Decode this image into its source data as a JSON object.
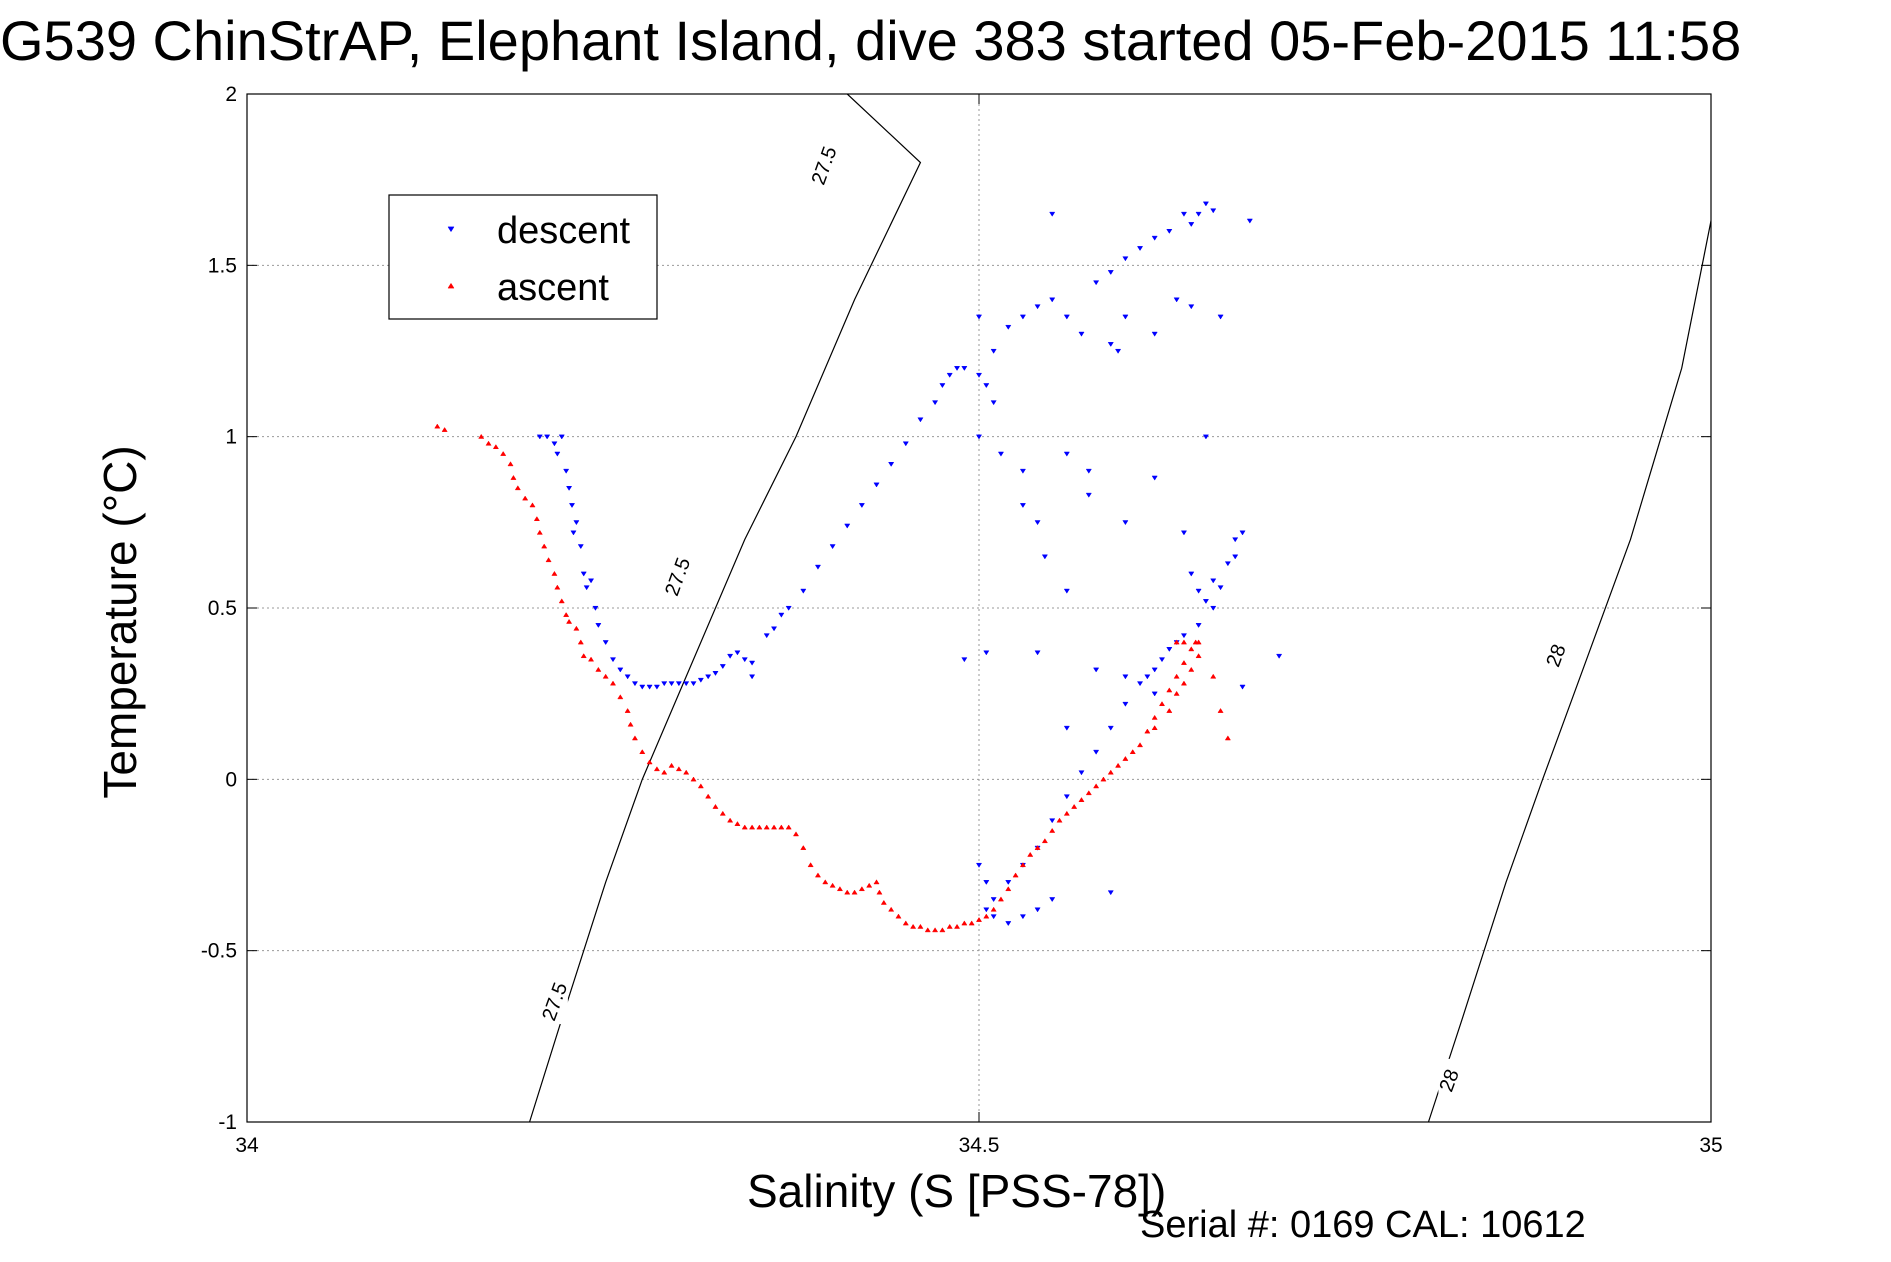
{
  "title": "G539 ChinStrAP, Elephant Island, dive 383 started 05-Feb-2015 11:58",
  "footer": "Serial #: 0169 CAL: 10612",
  "colors": {
    "descent": "#0000ff",
    "ascent": "#ff0000",
    "contour": "#000000",
    "grid": "#999999"
  },
  "chart_data": {
    "type": "scatter",
    "xlabel": "Salinity (S [PSS-78])",
    "ylabel": "Temperature (°C)",
    "xlim": [
      34,
      35
    ],
    "ylim": [
      -1,
      2
    ],
    "xticks": [
      "34",
      "34.5",
      "35"
    ],
    "yticks": [
      "-1",
      "-0.5",
      "0",
      "0.5",
      "1",
      "1.5",
      "2"
    ],
    "grid": true,
    "legend_position": "top-left",
    "contours": [
      {
        "label": "27.5",
        "points": [
          [
            34.193,
            -1
          ],
          [
            34.215,
            -0.7
          ],
          [
            34.245,
            -0.3
          ],
          [
            34.27,
            0
          ],
          [
            34.3,
            0.3
          ],
          [
            34.34,
            0.7
          ],
          [
            34.375,
            1
          ],
          [
            34.415,
            1.4
          ],
          [
            34.46,
            1.8
          ],
          [
            34.41,
            2
          ]
        ],
        "label_positions": [
          [
            34.211,
            -0.65
          ],
          [
            34.295,
            0.59
          ],
          [
            34.395,
            1.79
          ]
        ]
      },
      {
        "label": "28",
        "points": [
          [
            34.807,
            -1
          ],
          [
            34.83,
            -0.7
          ],
          [
            34.86,
            -0.3
          ],
          [
            34.885,
            0
          ],
          [
            34.915,
            0.35
          ],
          [
            34.945,
            0.7
          ],
          [
            34.98,
            1.2
          ],
          [
            35,
            1.63
          ]
        ],
        "label_positions": [
          [
            34.822,
            -0.88
          ],
          [
            34.895,
            0.36
          ]
        ]
      }
    ],
    "series": [
      {
        "name": "descent",
        "marker": "triangle-down",
        "points": [
          [
            34.2,
            1
          ],
          [
            34.205,
            1
          ],
          [
            34.21,
            0.98
          ],
          [
            34.212,
            0.95
          ],
          [
            34.215,
            1
          ],
          [
            34.218,
            0.9
          ],
          [
            34.22,
            0.85
          ],
          [
            34.222,
            0.8
          ],
          [
            34.225,
            0.75
          ],
          [
            34.223,
            0.72
          ],
          [
            34.228,
            0.68
          ],
          [
            34.23,
            0.6
          ],
          [
            34.232,
            0.56
          ],
          [
            34.235,
            0.58
          ],
          [
            34.238,
            0.5
          ],
          [
            34.24,
            0.45
          ],
          [
            34.245,
            0.4
          ],
          [
            34.25,
            0.35
          ],
          [
            34.255,
            0.32
          ],
          [
            34.26,
            0.3
          ],
          [
            34.265,
            0.28
          ],
          [
            34.27,
            0.27
          ],
          [
            34.275,
            0.27
          ],
          [
            34.28,
            0.27
          ],
          [
            34.285,
            0.28
          ],
          [
            34.29,
            0.28
          ],
          [
            34.295,
            0.28
          ],
          [
            34.3,
            0.28
          ],
          [
            34.305,
            0.28
          ],
          [
            34.31,
            0.29
          ],
          [
            34.315,
            0.3
          ],
          [
            34.32,
            0.31
          ],
          [
            34.325,
            0.33
          ],
          [
            34.33,
            0.36
          ],
          [
            34.335,
            0.37
          ],
          [
            34.34,
            0.35
          ],
          [
            34.345,
            0.34
          ],
          [
            34.345,
            0.3
          ],
          [
            34.355,
            0.42
          ],
          [
            34.36,
            0.44
          ],
          [
            34.365,
            0.48
          ],
          [
            34.37,
            0.5
          ],
          [
            34.38,
            0.55
          ],
          [
            34.39,
            0.62
          ],
          [
            34.4,
            0.68
          ],
          [
            34.41,
            0.74
          ],
          [
            34.42,
            0.8
          ],
          [
            34.43,
            0.86
          ],
          [
            34.44,
            0.92
          ],
          [
            34.45,
            0.98
          ],
          [
            34.46,
            1.05
          ],
          [
            34.47,
            1.1
          ],
          [
            34.475,
            1.15
          ],
          [
            34.48,
            1.18
          ],
          [
            34.485,
            1.2
          ],
          [
            34.49,
            1.2
          ],
          [
            34.5,
            1.18
          ],
          [
            34.505,
            1.15
          ],
          [
            34.51,
            1.25
          ],
          [
            34.52,
            1.32
          ],
          [
            34.53,
            1.35
          ],
          [
            34.54,
            1.38
          ],
          [
            34.55,
            1.4
          ],
          [
            34.56,
            1.35
          ],
          [
            34.57,
            1.3
          ],
          [
            34.58,
            1.45
          ],
          [
            34.59,
            1.48
          ],
          [
            34.6,
            1.52
          ],
          [
            34.61,
            1.55
          ],
          [
            34.62,
            1.58
          ],
          [
            34.63,
            1.6
          ],
          [
            34.64,
            1.65
          ],
          [
            34.645,
            1.62
          ],
          [
            34.65,
            1.65
          ],
          [
            34.655,
            1.68
          ],
          [
            34.66,
            1.66
          ],
          [
            34.635,
            1.4
          ],
          [
            34.645,
            1.38
          ],
          [
            34.62,
            1.3
          ],
          [
            34.6,
            1.35
          ],
          [
            34.59,
            1.27
          ],
          [
            34.595,
            1.25
          ],
          [
            34.665,
            1.35
          ],
          [
            34.685,
            1.63
          ],
          [
            34.55,
            1.65
          ],
          [
            34.5,
            1.35
          ],
          [
            34.51,
            1.1
          ],
          [
            34.5,
            1
          ],
          [
            34.515,
            0.95
          ],
          [
            34.53,
            0.9
          ],
          [
            34.53,
            0.8
          ],
          [
            34.54,
            0.75
          ],
          [
            34.545,
            0.65
          ],
          [
            34.56,
            0.55
          ],
          [
            34.56,
            0.95
          ],
          [
            34.575,
            0.83
          ],
          [
            34.62,
            0.88
          ],
          [
            34.6,
            0.75
          ],
          [
            34.64,
            0.72
          ],
          [
            34.645,
            0.6
          ],
          [
            34.65,
            0.55
          ],
          [
            34.655,
            0.52
          ],
          [
            34.66,
            0.5
          ],
          [
            34.665,
            0.56
          ],
          [
            34.67,
            0.63
          ],
          [
            34.675,
            0.7
          ],
          [
            34.68,
            0.72
          ],
          [
            34.675,
            0.65
          ],
          [
            34.66,
            0.58
          ],
          [
            34.65,
            0.45
          ],
          [
            34.64,
            0.42
          ],
          [
            34.635,
            0.4
          ],
          [
            34.63,
            0.38
          ],
          [
            34.625,
            0.35
          ],
          [
            34.62,
            0.32
          ],
          [
            34.615,
            0.3
          ],
          [
            34.61,
            0.28
          ],
          [
            34.6,
            0.22
          ],
          [
            34.59,
            0.15
          ],
          [
            34.58,
            0.08
          ],
          [
            34.57,
            0.02
          ],
          [
            34.56,
            -0.05
          ],
          [
            34.55,
            -0.12
          ],
          [
            34.54,
            -0.2
          ],
          [
            34.53,
            -0.25
          ],
          [
            34.52,
            -0.3
          ],
          [
            34.51,
            -0.35
          ],
          [
            34.505,
            -0.38
          ],
          [
            34.51,
            -0.4
          ],
          [
            34.52,
            -0.42
          ],
          [
            34.53,
            -0.4
          ],
          [
            34.54,
            -0.38
          ],
          [
            34.55,
            -0.35
          ],
          [
            34.5,
            -0.25
          ],
          [
            34.505,
            -0.3
          ],
          [
            34.49,
            0.35
          ],
          [
            34.505,
            0.37
          ],
          [
            34.54,
            0.37
          ],
          [
            34.56,
            0.15
          ],
          [
            34.58,
            0.32
          ],
          [
            34.6,
            0.3
          ],
          [
            34.62,
            0.25
          ],
          [
            34.68,
            0.27
          ],
          [
            34.705,
            0.36
          ],
          [
            34.575,
            0.9
          ],
          [
            34.655,
            1
          ],
          [
            34.59,
            -0.33
          ]
        ]
      },
      {
        "name": "ascent",
        "marker": "triangle-up",
        "points": [
          [
            34.13,
            1.03
          ],
          [
            34.135,
            1.02
          ],
          [
            34.16,
            1
          ],
          [
            34.165,
            0.98
          ],
          [
            34.17,
            0.97
          ],
          [
            34.175,
            0.95
          ],
          [
            34.18,
            0.92
          ],
          [
            34.182,
            0.88
          ],
          [
            34.185,
            0.85
          ],
          [
            34.19,
            0.82
          ],
          [
            34.195,
            0.8
          ],
          [
            34.198,
            0.76
          ],
          [
            34.2,
            0.72
          ],
          [
            34.203,
            0.68
          ],
          [
            34.206,
            0.64
          ],
          [
            34.21,
            0.6
          ],
          [
            34.212,
            0.56
          ],
          [
            34.215,
            0.52
          ],
          [
            34.218,
            0.48
          ],
          [
            34.22,
            0.46
          ],
          [
            34.225,
            0.44
          ],
          [
            34.228,
            0.4
          ],
          [
            34.23,
            0.36
          ],
          [
            34.235,
            0.35
          ],
          [
            34.24,
            0.32
          ],
          [
            34.245,
            0.3
          ],
          [
            34.25,
            0.28
          ],
          [
            34.255,
            0.24
          ],
          [
            34.26,
            0.2
          ],
          [
            34.262,
            0.16
          ],
          [
            34.265,
            0.12
          ],
          [
            34.27,
            0.08
          ],
          [
            34.275,
            0.05
          ],
          [
            34.28,
            0.03
          ],
          [
            34.285,
            0.02
          ],
          [
            34.29,
            0.04
          ],
          [
            34.295,
            0.03
          ],
          [
            34.3,
            0.02
          ],
          [
            34.305,
            0
          ],
          [
            34.31,
            -0.02
          ],
          [
            34.315,
            -0.05
          ],
          [
            34.32,
            -0.08
          ],
          [
            34.325,
            -0.1
          ],
          [
            34.33,
            -0.12
          ],
          [
            34.335,
            -0.13
          ],
          [
            34.34,
            -0.14
          ],
          [
            34.345,
            -0.14
          ],
          [
            34.35,
            -0.14
          ],
          [
            34.355,
            -0.14
          ],
          [
            34.36,
            -0.14
          ],
          [
            34.365,
            -0.14
          ],
          [
            34.37,
            -0.14
          ],
          [
            34.375,
            -0.16
          ],
          [
            34.38,
            -0.2
          ],
          [
            34.385,
            -0.25
          ],
          [
            34.39,
            -0.28
          ],
          [
            34.395,
            -0.3
          ],
          [
            34.4,
            -0.31
          ],
          [
            34.405,
            -0.32
          ],
          [
            34.41,
            -0.33
          ],
          [
            34.415,
            -0.33
          ],
          [
            34.42,
            -0.32
          ],
          [
            34.425,
            -0.31
          ],
          [
            34.43,
            -0.3
          ],
          [
            34.432,
            -0.33
          ],
          [
            34.435,
            -0.36
          ],
          [
            34.44,
            -0.38
          ],
          [
            34.445,
            -0.4
          ],
          [
            34.45,
            -0.42
          ],
          [
            34.455,
            -0.43
          ],
          [
            34.46,
            -0.43
          ],
          [
            34.465,
            -0.44
          ],
          [
            34.47,
            -0.44
          ],
          [
            34.475,
            -0.44
          ],
          [
            34.48,
            -0.43
          ],
          [
            34.485,
            -0.43
          ],
          [
            34.49,
            -0.42
          ],
          [
            34.495,
            -0.42
          ],
          [
            34.5,
            -0.41
          ],
          [
            34.505,
            -0.4
          ],
          [
            34.51,
            -0.38
          ],
          [
            34.515,
            -0.35
          ],
          [
            34.52,
            -0.32
          ],
          [
            34.525,
            -0.28
          ],
          [
            34.53,
            -0.25
          ],
          [
            34.535,
            -0.22
          ],
          [
            34.54,
            -0.2
          ],
          [
            34.545,
            -0.18
          ],
          [
            34.55,
            -0.15
          ],
          [
            34.555,
            -0.12
          ],
          [
            34.56,
            -0.1
          ],
          [
            34.565,
            -0.08
          ],
          [
            34.57,
            -0.06
          ],
          [
            34.575,
            -0.04
          ],
          [
            34.58,
            -0.02
          ],
          [
            34.585,
            0
          ],
          [
            34.59,
            0.02
          ],
          [
            34.595,
            0.04
          ],
          [
            34.6,
            0.06
          ],
          [
            34.605,
            0.08
          ],
          [
            34.61,
            0.1
          ],
          [
            34.615,
            0.14
          ],
          [
            34.62,
            0.18
          ],
          [
            34.625,
            0.22
          ],
          [
            34.63,
            0.26
          ],
          [
            34.635,
            0.3
          ],
          [
            34.64,
            0.34
          ],
          [
            34.645,
            0.38
          ],
          [
            34.648,
            0.4
          ],
          [
            34.65,
            0.36
          ],
          [
            34.645,
            0.32
          ],
          [
            34.64,
            0.28
          ],
          [
            34.635,
            0.25
          ],
          [
            34.63,
            0.2
          ],
          [
            34.62,
            0.15
          ],
          [
            34.66,
            0.3
          ],
          [
            34.665,
            0.2
          ],
          [
            34.67,
            0.12
          ],
          [
            34.64,
            0.4
          ],
          [
            34.635,
            0.4
          ],
          [
            34.65,
            0.4
          ]
        ]
      }
    ]
  }
}
